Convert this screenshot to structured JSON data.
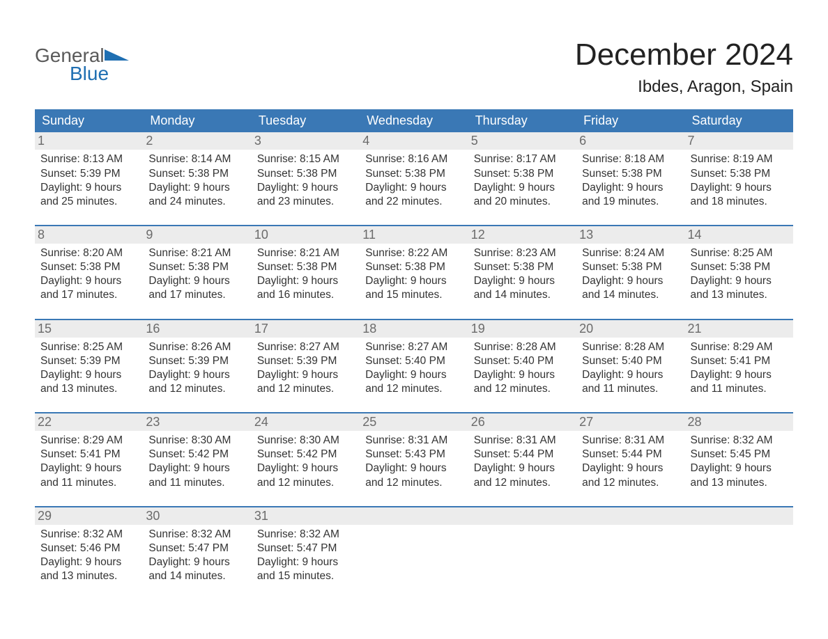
{
  "brand": {
    "word1": "General",
    "word2": "Blue"
  },
  "colors": {
    "header_bg": "#3a78b5",
    "header_text": "#ffffff",
    "daynum_bg": "#ececec",
    "daynum_text": "#6b6b6b",
    "body_text": "#333333",
    "brand_gray": "#5a5a5a",
    "brand_blue": "#1f6fb2"
  },
  "title": "December 2024",
  "location": "Ibdes, Aragon, Spain",
  "dow": [
    "Sunday",
    "Monday",
    "Tuesday",
    "Wednesday",
    "Thursday",
    "Friday",
    "Saturday"
  ],
  "weeks": [
    [
      {
        "n": "1",
        "sunrise": "8:13 AM",
        "sunset": "5:39 PM",
        "dl1": "Daylight: 9 hours",
        "dl2": "and 25 minutes."
      },
      {
        "n": "2",
        "sunrise": "8:14 AM",
        "sunset": "5:38 PM",
        "dl1": "Daylight: 9 hours",
        "dl2": "and 24 minutes."
      },
      {
        "n": "3",
        "sunrise": "8:15 AM",
        "sunset": "5:38 PM",
        "dl1": "Daylight: 9 hours",
        "dl2": "and 23 minutes."
      },
      {
        "n": "4",
        "sunrise": "8:16 AM",
        "sunset": "5:38 PM",
        "dl1": "Daylight: 9 hours",
        "dl2": "and 22 minutes."
      },
      {
        "n": "5",
        "sunrise": "8:17 AM",
        "sunset": "5:38 PM",
        "dl1": "Daylight: 9 hours",
        "dl2": "and 20 minutes."
      },
      {
        "n": "6",
        "sunrise": "8:18 AM",
        "sunset": "5:38 PM",
        "dl1": "Daylight: 9 hours",
        "dl2": "and 19 minutes."
      },
      {
        "n": "7",
        "sunrise": "8:19 AM",
        "sunset": "5:38 PM",
        "dl1": "Daylight: 9 hours",
        "dl2": "and 18 minutes."
      }
    ],
    [
      {
        "n": "8",
        "sunrise": "8:20 AM",
        "sunset": "5:38 PM",
        "dl1": "Daylight: 9 hours",
        "dl2": "and 17 minutes."
      },
      {
        "n": "9",
        "sunrise": "8:21 AM",
        "sunset": "5:38 PM",
        "dl1": "Daylight: 9 hours",
        "dl2": "and 17 minutes."
      },
      {
        "n": "10",
        "sunrise": "8:21 AM",
        "sunset": "5:38 PM",
        "dl1": "Daylight: 9 hours",
        "dl2": "and 16 minutes."
      },
      {
        "n": "11",
        "sunrise": "8:22 AM",
        "sunset": "5:38 PM",
        "dl1": "Daylight: 9 hours",
        "dl2": "and 15 minutes."
      },
      {
        "n": "12",
        "sunrise": "8:23 AM",
        "sunset": "5:38 PM",
        "dl1": "Daylight: 9 hours",
        "dl2": "and 14 minutes."
      },
      {
        "n": "13",
        "sunrise": "8:24 AM",
        "sunset": "5:38 PM",
        "dl1": "Daylight: 9 hours",
        "dl2": "and 14 minutes."
      },
      {
        "n": "14",
        "sunrise": "8:25 AM",
        "sunset": "5:38 PM",
        "dl1": "Daylight: 9 hours",
        "dl2": "and 13 minutes."
      }
    ],
    [
      {
        "n": "15",
        "sunrise": "8:25 AM",
        "sunset": "5:39 PM",
        "dl1": "Daylight: 9 hours",
        "dl2": "and 13 minutes."
      },
      {
        "n": "16",
        "sunrise": "8:26 AM",
        "sunset": "5:39 PM",
        "dl1": "Daylight: 9 hours",
        "dl2": "and 12 minutes."
      },
      {
        "n": "17",
        "sunrise": "8:27 AM",
        "sunset": "5:39 PM",
        "dl1": "Daylight: 9 hours",
        "dl2": "and 12 minutes."
      },
      {
        "n": "18",
        "sunrise": "8:27 AM",
        "sunset": "5:40 PM",
        "dl1": "Daylight: 9 hours",
        "dl2": "and 12 minutes."
      },
      {
        "n": "19",
        "sunrise": "8:28 AM",
        "sunset": "5:40 PM",
        "dl1": "Daylight: 9 hours",
        "dl2": "and 12 minutes."
      },
      {
        "n": "20",
        "sunrise": "8:28 AM",
        "sunset": "5:40 PM",
        "dl1": "Daylight: 9 hours",
        "dl2": "and 11 minutes."
      },
      {
        "n": "21",
        "sunrise": "8:29 AM",
        "sunset": "5:41 PM",
        "dl1": "Daylight: 9 hours",
        "dl2": "and 11 minutes."
      }
    ],
    [
      {
        "n": "22",
        "sunrise": "8:29 AM",
        "sunset": "5:41 PM",
        "dl1": "Daylight: 9 hours",
        "dl2": "and 11 minutes."
      },
      {
        "n": "23",
        "sunrise": "8:30 AM",
        "sunset": "5:42 PM",
        "dl1": "Daylight: 9 hours",
        "dl2": "and 11 minutes."
      },
      {
        "n": "24",
        "sunrise": "8:30 AM",
        "sunset": "5:42 PM",
        "dl1": "Daylight: 9 hours",
        "dl2": "and 12 minutes."
      },
      {
        "n": "25",
        "sunrise": "8:31 AM",
        "sunset": "5:43 PM",
        "dl1": "Daylight: 9 hours",
        "dl2": "and 12 minutes."
      },
      {
        "n": "26",
        "sunrise": "8:31 AM",
        "sunset": "5:44 PM",
        "dl1": "Daylight: 9 hours",
        "dl2": "and 12 minutes."
      },
      {
        "n": "27",
        "sunrise": "8:31 AM",
        "sunset": "5:44 PM",
        "dl1": "Daylight: 9 hours",
        "dl2": "and 12 minutes."
      },
      {
        "n": "28",
        "sunrise": "8:32 AM",
        "sunset": "5:45 PM",
        "dl1": "Daylight: 9 hours",
        "dl2": "and 13 minutes."
      }
    ],
    [
      {
        "n": "29",
        "sunrise": "8:32 AM",
        "sunset": "5:46 PM",
        "dl1": "Daylight: 9 hours",
        "dl2": "and 13 minutes."
      },
      {
        "n": "30",
        "sunrise": "8:32 AM",
        "sunset": "5:47 PM",
        "dl1": "Daylight: 9 hours",
        "dl2": "and 14 minutes."
      },
      {
        "n": "31",
        "sunrise": "8:32 AM",
        "sunset": "5:47 PM",
        "dl1": "Daylight: 9 hours",
        "dl2": "and 15 minutes."
      },
      null,
      null,
      null,
      null
    ]
  ],
  "labels": {
    "sunrise_prefix": "Sunrise: ",
    "sunset_prefix": "Sunset: "
  }
}
